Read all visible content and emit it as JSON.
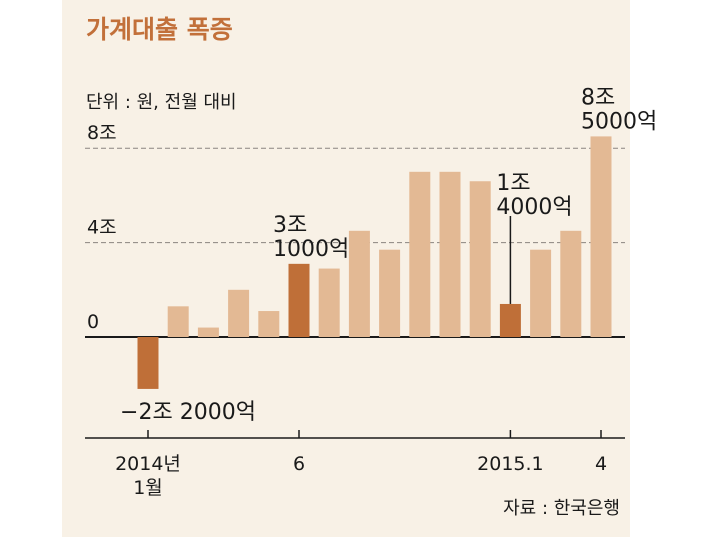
{
  "chart_data": {
    "type": "bar",
    "title": "가계대출 폭증",
    "unit_note": "단위 : 원, 전월 대비",
    "source": "자료 : 한국은행",
    "ylim": [
      -3.1,
      10
    ],
    "y_ticks": [
      {
        "value": 8,
        "label": "8조",
        "dashed": true
      },
      {
        "value": 4,
        "label": "4조",
        "dashed": true
      },
      {
        "value": 0,
        "label": "0",
        "dashed": false
      }
    ],
    "x_ticks": [
      {
        "index": 0,
        "label_lines": [
          "2014년",
          "1월"
        ]
      },
      {
        "index": 5,
        "label_lines": [
          "6"
        ]
      },
      {
        "index": 12,
        "label_lines": [
          "2015.1"
        ]
      },
      {
        "index": 15,
        "label_lines": [
          "4"
        ]
      }
    ],
    "values": [
      -2.2,
      1.3,
      0.4,
      2.0,
      1.1,
      3.1,
      2.9,
      4.5,
      3.7,
      7.0,
      7.0,
      6.6,
      1.4,
      3.7,
      4.5,
      8.5
    ],
    "highlight_indices": [
      0,
      5,
      12
    ],
    "annotations": [
      {
        "index": 0,
        "lines": [
          "−2조 2000억"
        ],
        "placement": "below"
      },
      {
        "index": 5,
        "lines": [
          "3조",
          "1000억"
        ],
        "placement": "above"
      },
      {
        "index": 12,
        "lines": [
          "1조",
          "4000억"
        ],
        "placement": "above-leader"
      },
      {
        "index": 15,
        "lines": [
          "8조",
          "5000억"
        ],
        "placement": "above"
      }
    ],
    "colors": {
      "background": "#f8f1e6",
      "bar": "#e3b994",
      "highlight": "#bf6f38",
      "title": "#c2703a",
      "text": "#1a1a1a",
      "grid": "#8a8480"
    }
  }
}
